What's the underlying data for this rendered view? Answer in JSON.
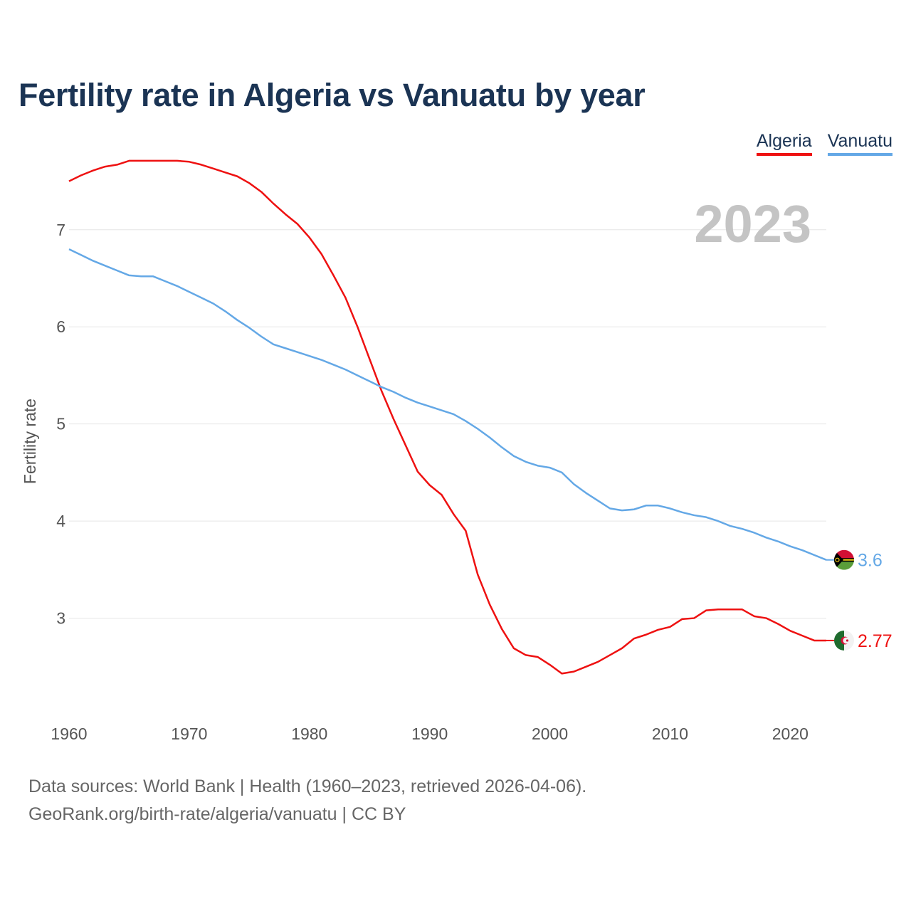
{
  "title": "Fertility rate in Algeria vs Vanuatu by year",
  "legend": [
    {
      "label": "Algeria",
      "color": "#ee1111"
    },
    {
      "label": "Vanuatu",
      "color": "#64a8e6"
    }
  ],
  "footer": {
    "line1": "Data sources: World Bank | Health (1960–2023, retrieved 2026-04-06).",
    "line2": "GeoRank.org/birth-rate/algeria/vanuatu | CC BY"
  },
  "chart_data": {
    "type": "line",
    "title": "Fertility rate in Algeria vs Vanuatu by year",
    "year_label": "2023",
    "xlabel": "",
    "ylabel": "Fertility rate",
    "xlim": [
      1960,
      2023
    ],
    "ylim": [
      2.0,
      7.9
    ],
    "grid": true,
    "legend_position": "top-right",
    "x_ticks": [
      1960,
      1970,
      1980,
      1990,
      2000,
      2010,
      2020
    ],
    "y_ticks": [
      3,
      4,
      5,
      6,
      7
    ],
    "x": [
      1960,
      1961,
      1962,
      1963,
      1964,
      1965,
      1966,
      1967,
      1968,
      1969,
      1970,
      1971,
      1972,
      1973,
      1974,
      1975,
      1976,
      1977,
      1978,
      1979,
      1980,
      1981,
      1982,
      1983,
      1984,
      1985,
      1986,
      1987,
      1988,
      1989,
      1990,
      1991,
      1992,
      1993,
      1994,
      1995,
      1996,
      1997,
      1998,
      1999,
      2000,
      2001,
      2002,
      2003,
      2004,
      2005,
      2006,
      2007,
      2008,
      2009,
      2010,
      2011,
      2012,
      2013,
      2014,
      2015,
      2016,
      2017,
      2018,
      2019,
      2020,
      2021,
      2022,
      2023
    ],
    "series": [
      {
        "name": "Algeria",
        "color": "#ee1111",
        "end_label": "2.77",
        "flag": "Algeria",
        "values": [
          7.5,
          7.56,
          7.61,
          7.65,
          7.67,
          7.71,
          7.71,
          7.71,
          7.71,
          7.71,
          7.7,
          7.67,
          7.63,
          7.59,
          7.55,
          7.48,
          7.39,
          7.27,
          7.16,
          7.06,
          6.92,
          6.75,
          6.53,
          6.3,
          6.0,
          5.67,
          5.34,
          5.05,
          4.78,
          4.51,
          4.37,
          4.27,
          4.07,
          3.9,
          3.45,
          3.14,
          2.89,
          2.69,
          2.62,
          2.6,
          2.52,
          2.43,
          2.45,
          2.5,
          2.55,
          2.62,
          2.69,
          2.79,
          2.83,
          2.88,
          2.91,
          2.99,
          3.0,
          3.08,
          3.09,
          3.09,
          3.09,
          3.02,
          3.0,
          2.94,
          2.87,
          2.82,
          2.77,
          2.77
        ]
      },
      {
        "name": "Vanuatu",
        "color": "#64a8e6",
        "end_label": "3.6",
        "flag": "Vanuatu",
        "values": [
          6.8,
          6.74,
          6.68,
          6.63,
          6.58,
          6.53,
          6.52,
          6.52,
          6.47,
          6.42,
          6.36,
          6.3,
          6.24,
          6.16,
          6.07,
          5.99,
          5.9,
          5.82,
          5.78,
          5.74,
          5.7,
          5.66,
          5.61,
          5.56,
          5.5,
          5.44,
          5.38,
          5.33,
          5.27,
          5.22,
          5.18,
          5.14,
          5.1,
          5.03,
          4.95,
          4.86,
          4.76,
          4.67,
          4.61,
          4.57,
          4.55,
          4.5,
          4.38,
          4.29,
          4.21,
          4.13,
          4.11,
          4.12,
          4.16,
          4.16,
          4.13,
          4.09,
          4.06,
          4.04,
          4.0,
          3.95,
          3.92,
          3.88,
          3.83,
          3.79,
          3.74,
          3.7,
          3.65,
          3.6
        ]
      }
    ]
  }
}
